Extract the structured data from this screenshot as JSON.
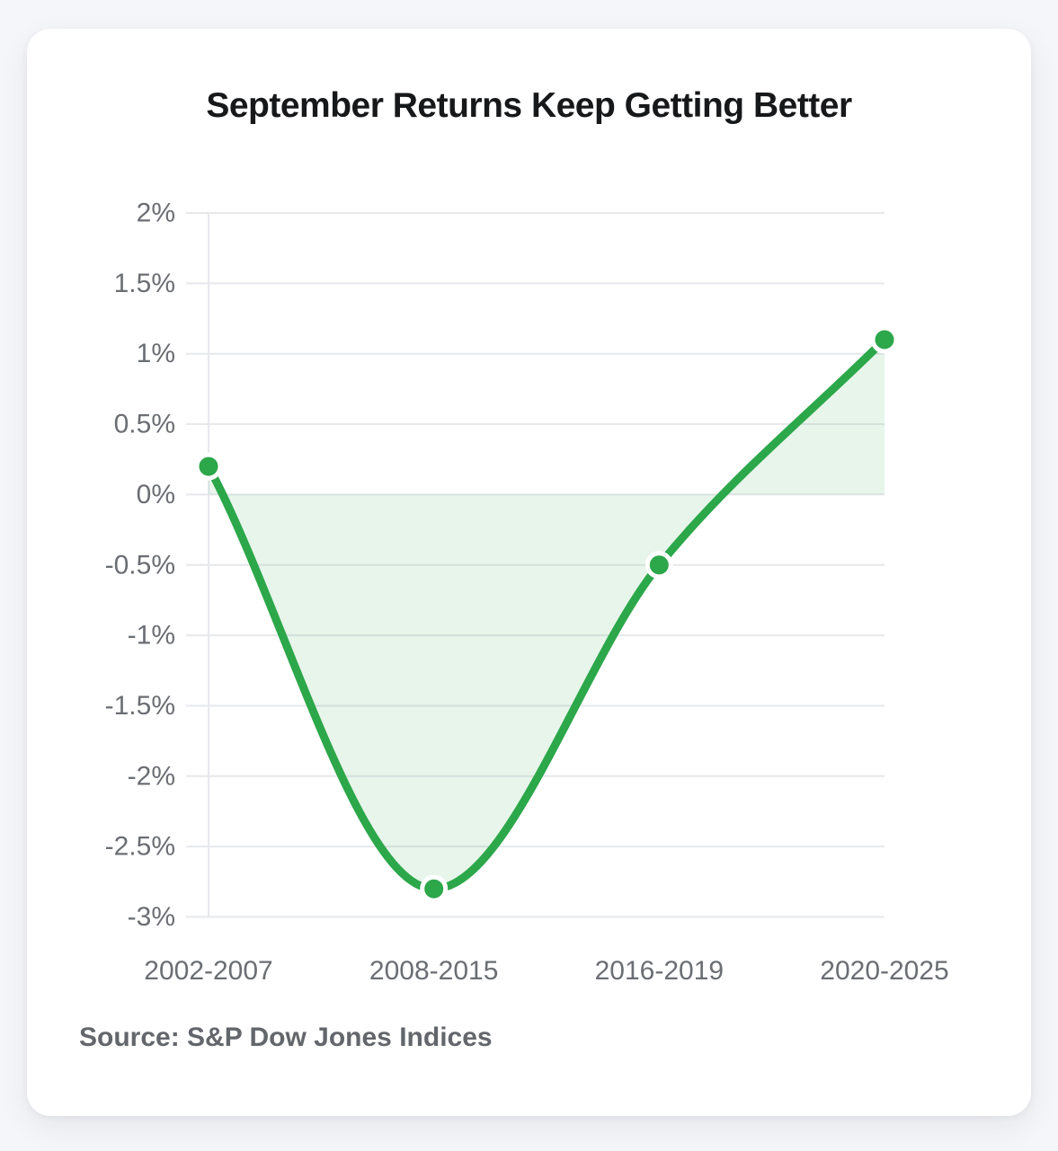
{
  "page": {
    "background_color": "#f5f6f9",
    "card_color": "#ffffff"
  },
  "card": {
    "title": "September Returns Keep Getting Better",
    "source": "Source: S&P Dow Jones Indices"
  },
  "chart_data": {
    "type": "area",
    "title": "September Returns Keep Getting Better",
    "categories": [
      "2002-2007",
      "2008-2015",
      "2016-2019",
      "2020-2025"
    ],
    "values": [
      0.2,
      -2.8,
      -0.5,
      1.1
    ],
    "xlabel": "",
    "ylabel": "",
    "ylim": [
      -3,
      2
    ],
    "ytick_step": 0.5,
    "ytick_labels": [
      "2%",
      "1.5%",
      "1%",
      "0.5%",
      "0%",
      "-0.5%",
      "-1%",
      "-1.5%",
      "-2%",
      "-2.5%",
      "-3%"
    ],
    "baseline": 0,
    "grid": true,
    "smoothing": "monotone",
    "legend": "none",
    "line_color": "#2ca74a",
    "fill_color": "rgba(44,167,74,0.11)",
    "marker_fill_color": "#2ca74a",
    "marker_ring_color": "#ffffff",
    "grid_color": "#e6e8ec",
    "tick_color": "#6b6e73",
    "title_color": "#17181a",
    "source_color": "#63666b"
  }
}
